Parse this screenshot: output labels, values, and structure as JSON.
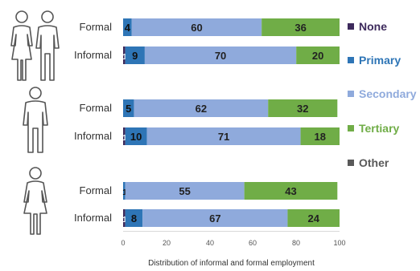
{
  "chart_data": {
    "type": "bar",
    "orientation": "horizontal",
    "stacked": true,
    "xlabel": "Distribution of informal and formal employment",
    "xlim": [
      0,
      100
    ],
    "xticks": [
      "0",
      "20",
      "40",
      "60",
      "80",
      "100"
    ],
    "categories": [
      "None",
      "Primary",
      "Secondary",
      "Tertiary",
      "Other"
    ],
    "legend": [
      {
        "label": "None",
        "color": "#3d2a5c"
      },
      {
        "label": "Primary",
        "color": "#2e75b6"
      },
      {
        "label": "Secondary",
        "color": "#8faadc"
      },
      {
        "label": "Tertiary",
        "color": "#70ad47"
      },
      {
        "label": "Other",
        "color": "#595959"
      }
    ],
    "legend_position": "right",
    "groups": [
      {
        "icon": "couple-icon",
        "rows": [
          {
            "label": "Formal",
            "values": [
              0,
              4,
              60,
              36,
              0
            ],
            "data_labels": [
              "",
              "4",
              "60",
              "36",
              ""
            ]
          },
          {
            "label": "Informal",
            "values": [
              1,
              9,
              70,
              20,
              0
            ],
            "data_labels": [
              "1",
              "9",
              "70",
              "20",
              ""
            ]
          }
        ]
      },
      {
        "icon": "man-icon",
        "rows": [
          {
            "label": "Formal",
            "values": [
              0,
              5,
              62,
              32,
              0
            ],
            "data_labels": [
              "0",
              "5",
              "62",
              "32",
              ""
            ]
          },
          {
            "label": "Informal",
            "values": [
              1,
              10,
              71,
              18,
              0
            ],
            "data_labels": [
              "1",
              "10",
              "71",
              "18",
              ""
            ]
          }
        ]
      },
      {
        "icon": "woman-icon",
        "rows": [
          {
            "label": "Formal",
            "values": [
              0,
              1,
              55,
              43,
              0
            ],
            "data_labels": [
              "",
              "1",
              "55",
              "43",
              ""
            ]
          },
          {
            "label": "Informal",
            "values": [
              1,
              8,
              67,
              24,
              0
            ],
            "data_labels": [
              "1",
              "8",
              "67",
              "24",
              ""
            ]
          }
        ]
      }
    ],
    "grid": false
  }
}
